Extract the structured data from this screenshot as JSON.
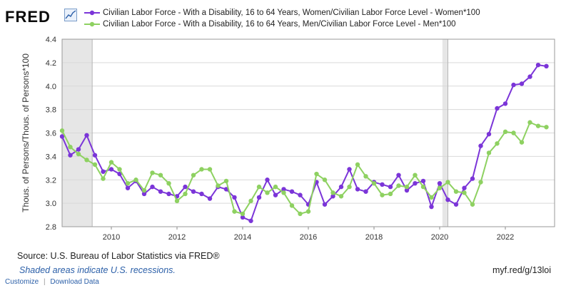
{
  "brand": {
    "logo_text": "FRED"
  },
  "chart_data": {
    "type": "line",
    "ylabel": "Thous. of Persons/Thous. of Persons*100",
    "xlabel": "",
    "ylim": [
      2.8,
      4.4
    ],
    "xlim": [
      "2008-07",
      "2023-07"
    ],
    "yticks": [
      "2.8",
      "3.0",
      "3.2",
      "3.4",
      "3.6",
      "3.8",
      "4.0",
      "4.2",
      "4.4"
    ],
    "xticks": [
      "2010",
      "2012",
      "2014",
      "2016",
      "2018",
      "2020",
      "2022"
    ],
    "grid": "horizontal",
    "legend_placement": "top",
    "recessions": [
      [
        "2008-07",
        "2009-06"
      ],
      [
        "2020-02",
        "2020-04"
      ]
    ],
    "x": [
      "2008-07",
      "2008-10",
      "2009-01",
      "2009-04",
      "2009-07",
      "2009-10",
      "2010-01",
      "2010-04",
      "2010-07",
      "2010-10",
      "2011-01",
      "2011-04",
      "2011-07",
      "2011-10",
      "2012-01",
      "2012-04",
      "2012-07",
      "2012-10",
      "2013-01",
      "2013-04",
      "2013-07",
      "2013-10",
      "2014-01",
      "2014-04",
      "2014-07",
      "2014-10",
      "2015-01",
      "2015-04",
      "2015-07",
      "2015-10",
      "2016-01",
      "2016-04",
      "2016-07",
      "2016-10",
      "2017-01",
      "2017-04",
      "2017-07",
      "2017-10",
      "2018-01",
      "2018-04",
      "2018-07",
      "2018-10",
      "2019-01",
      "2019-04",
      "2019-07",
      "2019-10",
      "2020-01",
      "2020-04",
      "2020-07",
      "2020-10",
      "2021-01",
      "2021-04",
      "2021-07",
      "2021-10",
      "2022-01",
      "2022-04",
      "2022-07",
      "2022-10",
      "2023-01",
      "2023-04"
    ],
    "series": [
      {
        "name": "Civilian Labor Force - With a Disability, 16 to 64 Years, Women/Civilian Labor Force Level - Women*100",
        "color": "#7b35d8",
        "values": [
          3.57,
          3.41,
          3.46,
          3.58,
          3.41,
          3.27,
          3.29,
          3.25,
          3.13,
          3.19,
          3.08,
          3.14,
          3.1,
          3.08,
          3.06,
          3.14,
          3.1,
          3.08,
          3.04,
          3.14,
          3.12,
          3.05,
          2.88,
          2.85,
          3.05,
          3.2,
          3.07,
          3.12,
          3.1,
          3.07,
          2.99,
          3.18,
          2.99,
          3.06,
          3.14,
          3.29,
          3.12,
          3.1,
          3.18,
          3.16,
          3.14,
          3.24,
          3.11,
          3.17,
          3.19,
          2.97,
          3.17,
          3.03,
          2.99,
          3.13,
          3.21,
          3.49,
          3.59,
          3.81,
          3.85,
          4.01,
          4.02,
          4.08,
          4.18,
          4.17
        ]
      },
      {
        "name": "Civilian Labor Force - With a Disability, 16 to 64 Years, Men/Civilian Labor Force Level - Men*100",
        "color": "#8ed161",
        "values": [
          3.62,
          3.48,
          3.42,
          3.37,
          3.33,
          3.21,
          3.35,
          3.29,
          3.17,
          3.2,
          3.11,
          3.26,
          3.24,
          3.17,
          3.02,
          3.08,
          3.24,
          3.29,
          3.29,
          3.15,
          3.19,
          2.93,
          2.91,
          3.02,
          3.14,
          3.09,
          3.14,
          3.09,
          2.98,
          2.91,
          2.93,
          3.25,
          3.2,
          3.09,
          3.06,
          3.14,
          3.33,
          3.23,
          3.17,
          3.07,
          3.08,
          3.15,
          3.14,
          3.24,
          3.14,
          3.05,
          3.13,
          3.18,
          3.1,
          3.09,
          2.99,
          3.18,
          3.43,
          3.51,
          3.61,
          3.6,
          3.52,
          3.69,
          3.66,
          3.65
        ]
      }
    ]
  },
  "footer": {
    "source": "Source: U.S. Bureau of Labor Statistics via FRED®",
    "recession_note": "Shaded areas indicate U.S. recessions.",
    "short_url": "myf.red/g/13loi",
    "customize": "Customize",
    "separator": "|",
    "download": "Download Data"
  },
  "colors": {
    "recession_shade": "#e6e6e6",
    "grid": "#d9d9d9",
    "plot_border": "#9a9a9a"
  }
}
